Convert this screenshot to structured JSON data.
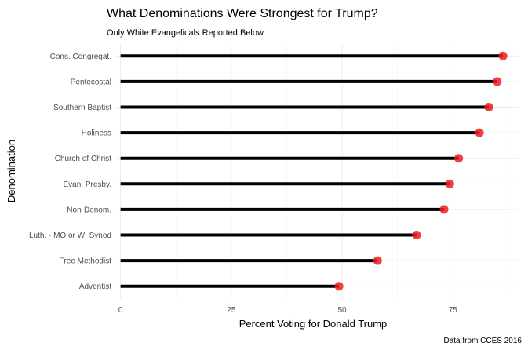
{
  "chart_data": {
    "type": "lollipop",
    "title": "What Denominations Were Strongest for Trump?",
    "subtitle": "Only White Evangelicals Reported Below",
    "xlabel": "Percent Voting for Donald Trump",
    "ylabel": "Denomination",
    "caption": "Data from CCES 2016",
    "xlim": [
      -1,
      90
    ],
    "x_ticks": [
      0,
      25,
      50,
      75
    ],
    "x_tick_labels": [
      "0",
      "25",
      "50",
      "75"
    ],
    "grid": true,
    "colors": {
      "segment": "#000000",
      "point": "#ee1c25"
    },
    "categories": [
      "Cons. Congregat.",
      "Pentecostal",
      "Southern Baptist",
      "Holiness",
      "Church of Christ",
      "Evan. Presby.",
      "Non-Denom.",
      "Luth. - MO or WI Synod",
      "Free Methodist",
      "Adventist"
    ],
    "values": [
      86.3,
      85.0,
      83.1,
      81.0,
      76.3,
      74.3,
      73.0,
      66.8,
      58.0,
      49.3
    ]
  }
}
